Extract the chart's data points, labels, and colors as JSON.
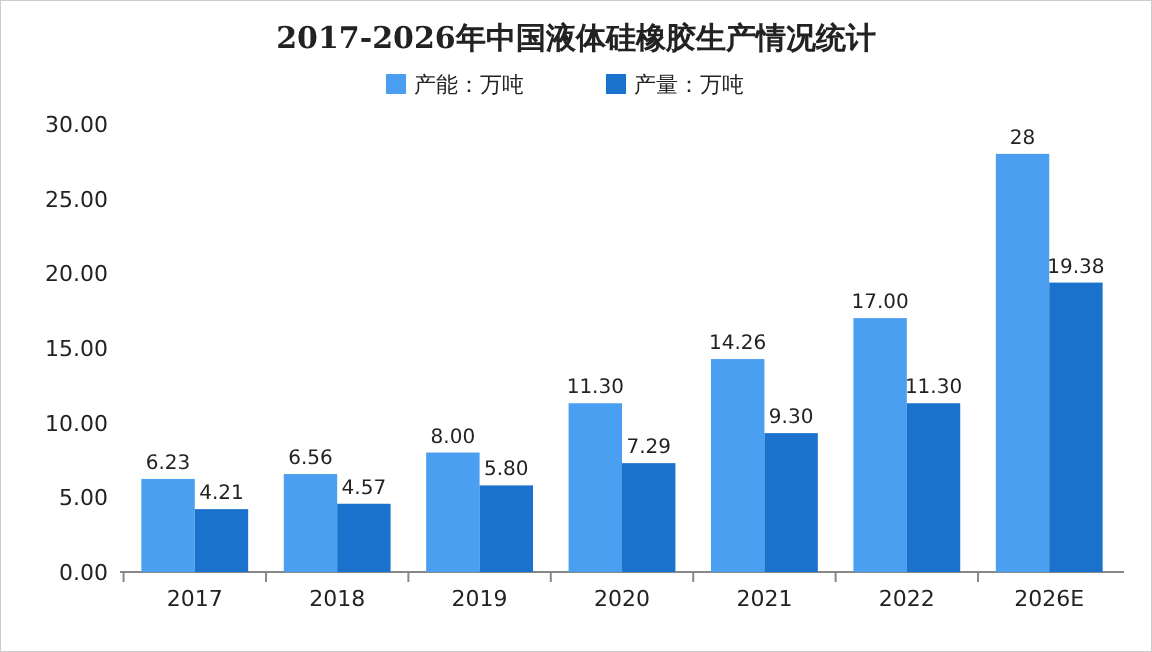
{
  "chart_data": {
    "type": "bar",
    "title": "2017-2026年中国液体硅橡胶生产情况统计",
    "categories": [
      "2017",
      "2018",
      "2019",
      "2020",
      "2021",
      "2022",
      "2026E"
    ],
    "series": [
      {
        "name": "产能：万吨",
        "color": "#4a9ff0",
        "values": [
          6.23,
          6.56,
          8.0,
          11.3,
          14.26,
          17.0,
          28
        ],
        "value_labels": [
          "6.23",
          "6.56",
          "8.00",
          "11.30",
          "14.26",
          "17.00",
          "28"
        ]
      },
      {
        "name": "产量：万吨",
        "color": "#1a72cc",
        "values": [
          4.21,
          4.57,
          5.8,
          7.29,
          9.3,
          11.3,
          19.38
        ],
        "value_labels": [
          "4.21",
          "4.57",
          "5.80",
          "7.29",
          "9.30",
          "11.30",
          "19.38"
        ]
      }
    ],
    "ylim": [
      0,
      30
    ],
    "yticks": [
      {
        "value": 0,
        "label": "0.00"
      },
      {
        "value": 5,
        "label": "5.00"
      },
      {
        "value": 10,
        "label": "10.00"
      },
      {
        "value": 15,
        "label": "15.00"
      },
      {
        "value": 20,
        "label": "20.00"
      },
      {
        "value": 25,
        "label": "25.00"
      },
      {
        "value": 30,
        "label": "30.00"
      }
    ],
    "legend": "top"
  }
}
